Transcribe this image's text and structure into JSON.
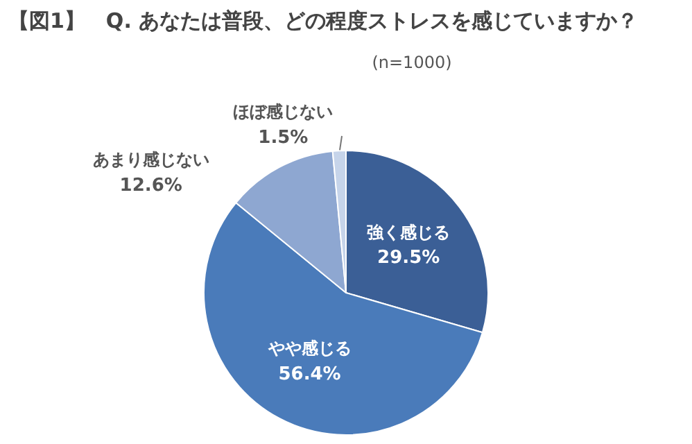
{
  "chart_data": {
    "type": "pie",
    "title": "【図1】　Q. あなたは普段、どの程度ストレスを感じていますか？",
    "subtitle": "(n=1000)",
    "categories": [
      "強く感じる",
      "やや感じる",
      "あまり感じない",
      "ほぼ感じない"
    ],
    "values": [
      29.5,
      56.4,
      12.6,
      1.5
    ],
    "value_labels": [
      "29.5%",
      "56.4%",
      "12.6%",
      "1.5%"
    ],
    "colors": [
      "#3b5f96",
      "#4a7bba",
      "#8ea7d1",
      "#c6d4ea"
    ],
    "legend": false
  }
}
